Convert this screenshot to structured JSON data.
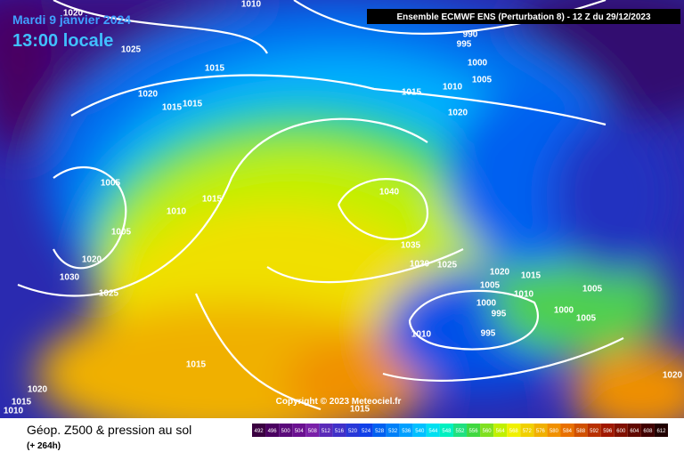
{
  "header": {
    "date": "Mardi 9 janvier 2024",
    "time": "13:00 locale",
    "model": "Ensemble ECMWF ENS  (Perturbation 8)  -  12 Z du 29/12/2023"
  },
  "isobar_labels": [
    1010,
    1020,
    1025,
    1015,
    1020,
    1015,
    1015,
    1005,
    1010,
    1015,
    1005,
    1020,
    1030,
    1025,
    1015,
    1020,
    1015,
    1010,
    990,
    995,
    1000,
    1005,
    1010,
    1015,
    1020,
    1040,
    1035,
    1030,
    1025,
    1020,
    1015,
    1005,
    1010,
    1000,
    995,
    1000,
    1005,
    1005,
    1010,
    995,
    1020,
    1015
  ],
  "copyright": "Copyright © 2023 Meteociel.fr",
  "footer": {
    "title": "Géop. Z500 & pression au sol",
    "lead": "(+ 264h)"
  },
  "colorbar": {
    "values": [
      492,
      496,
      500,
      504,
      508,
      512,
      516,
      520,
      524,
      528,
      532,
      536,
      540,
      544,
      548,
      552,
      556,
      560,
      564,
      568,
      572,
      576,
      580,
      584,
      588,
      592,
      596,
      600,
      604,
      608,
      612
    ],
    "colors": [
      "#3a0040",
      "#4a0060",
      "#5a0a7a",
      "#6a1090",
      "#7a20a8",
      "#5a2ab8",
      "#4030c8",
      "#2838d8",
      "#1040e8",
      "#0060f0",
      "#0080f8",
      "#00a0ff",
      "#00c0ff",
      "#00e0f0",
      "#00f0c0",
      "#20e080",
      "#40d840",
      "#80e020",
      "#c0f000",
      "#f0f000",
      "#f0d000",
      "#f0b000",
      "#f09000",
      "#e87000",
      "#d05000",
      "#b83000",
      "#a01800",
      "#801000",
      "#600800",
      "#400000",
      "#200000"
    ]
  }
}
